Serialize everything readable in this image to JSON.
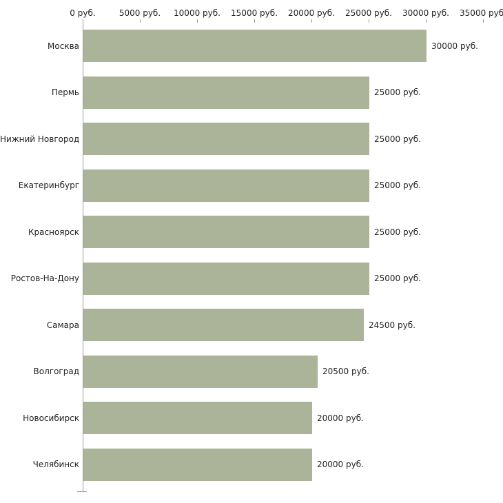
{
  "chart_data": {
    "type": "bar",
    "orientation": "horizontal",
    "title": "",
    "xlabel": "",
    "ylabel": "",
    "categories": [
      "Москва",
      "Пермь",
      "Нижний Новгород",
      "Екатеринбург",
      "Красноярск",
      "Ростов-На-Дону",
      "Самара",
      "Волгоград",
      "Новосибирск",
      "Челябинск"
    ],
    "values": [
      30000,
      25000,
      25000,
      25000,
      25000,
      25000,
      24500,
      20500,
      20000,
      20000
    ],
    "value_labels": [
      "30000 руб.",
      "25000 руб.",
      "25000 руб.",
      "25000 руб.",
      "25000 руб.",
      "25000 руб.",
      "24500 руб.",
      "20500 руб.",
      "20000 руб.",
      "20000 руб."
    ],
    "x_tick_labels": [
      "0 руб.",
      "5000 руб.",
      "10000 руб.",
      "15000 руб.",
      "20000 руб.",
      "25000 руб.",
      "30000 руб.",
      "35000 руб."
    ],
    "xlim": [
      0,
      35000
    ],
    "grid": false,
    "legend": "none",
    "colors": {
      "bar": "#abb498",
      "axis": "#9a9a9a",
      "text": "#222222"
    }
  }
}
